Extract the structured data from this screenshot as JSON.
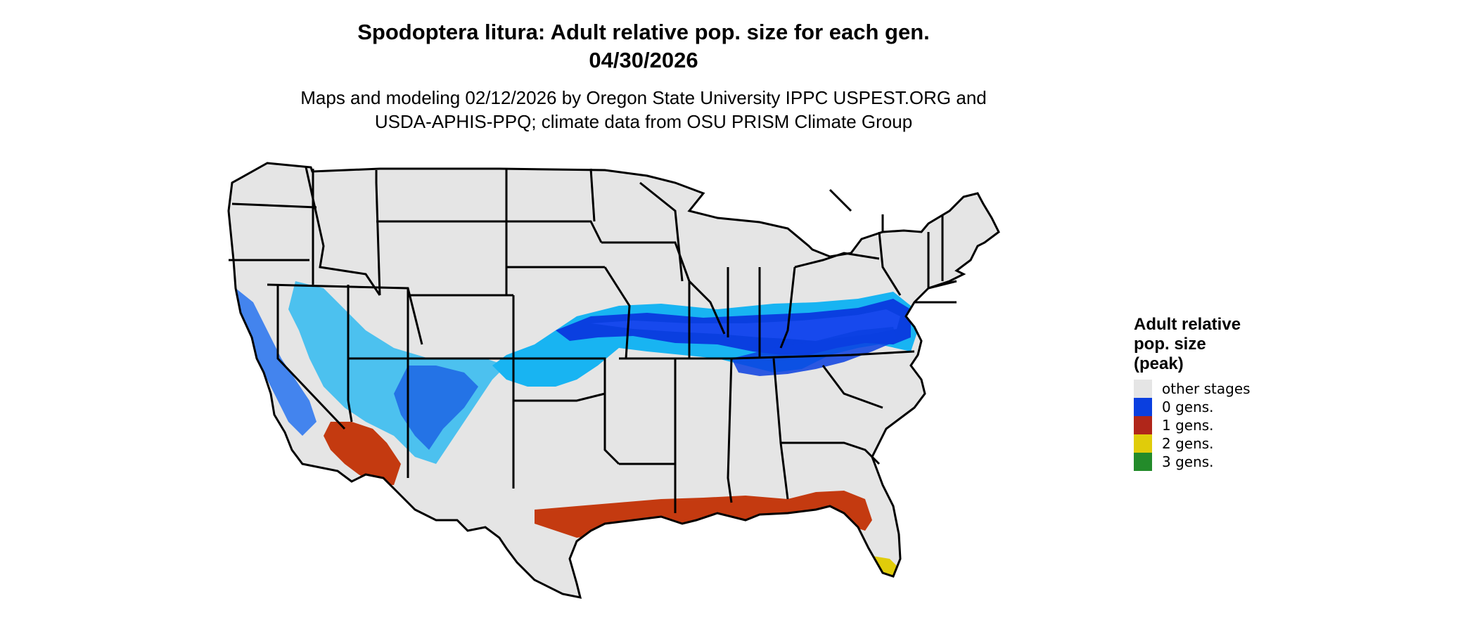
{
  "title": {
    "line1": "Spodoptera litura: Adult relative pop. size for each gen.",
    "line2": "04/30/2026"
  },
  "subtitle": {
    "line1": "Maps and modeling 02/12/2026 by Oregon State University IPPC USPEST.ORG and",
    "line2": "USDA-APHIS-PPQ; climate data from OSU PRISM Climate Group"
  },
  "legend": {
    "title_line1": "Adult relative",
    "title_line2": "pop. size",
    "title_line3": "(peak)",
    "items": [
      {
        "label": "other stages",
        "color": "#e5e5e5"
      },
      {
        "label": "0 gens.",
        "color": "#0a3fe0"
      },
      {
        "label": "1 gens.",
        "color": "#b0261a"
      },
      {
        "label": "2 gens.",
        "color": "#e0cc0a"
      },
      {
        "label": "3 gens.",
        "color": "#238b2a"
      }
    ]
  },
  "map_colors": {
    "background": "#e5e5e5",
    "border": "#000000",
    "blue_dark": "#0a3fe0",
    "blue_mid": "#1a6cf0",
    "blue_light": "#18b4f2",
    "red": "#c43a10",
    "red_dark": "#b0261a",
    "yellow": "#e0cc0a"
  }
}
